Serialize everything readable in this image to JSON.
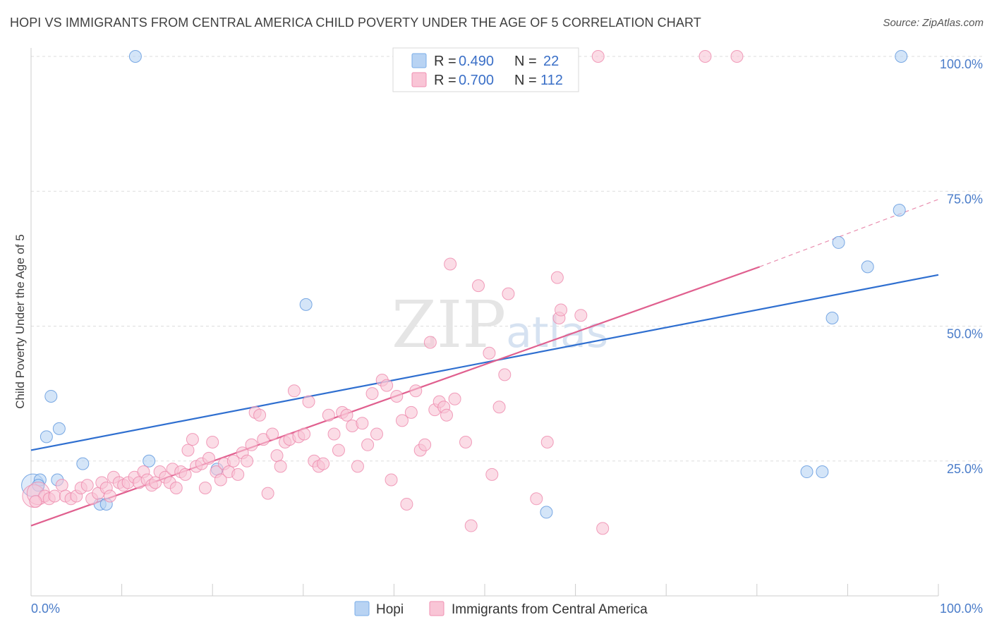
{
  "title": "HOPI VS IMMIGRANTS FROM CENTRAL AMERICA CHILD POVERTY UNDER THE AGE OF 5 CORRELATION CHART",
  "source": "Source: ZipAtlas.com",
  "watermark": "ZIPatlas",
  "legend": {
    "r_label": "R =",
    "n_label": "N =",
    "items": [
      {
        "name": "Hopi",
        "r": "0.490",
        "n": "22",
        "color": "#7aaee8",
        "fill": "#b8d3f3"
      },
      {
        "name": "Immigrants from Central America",
        "r": "0.700",
        "n": "112",
        "color": "#f08fb1",
        "fill": "#f9c5d6"
      }
    ]
  },
  "chart_data": {
    "type": "scatter",
    "title": "HOPI VS IMMIGRANTS FROM CENTRAL AMERICA CHILD POVERTY UNDER THE AGE OF 5 CORRELATION CHART",
    "xlabel": "",
    "ylabel": "Child Poverty Under the Age of 5",
    "xlim": [
      0,
      100
    ],
    "ylim": [
      0,
      100
    ],
    "x_tick_labels": [
      "0.0%",
      "100.0%"
    ],
    "y_ticks": [
      {
        "value": 25,
        "label": "25.0%"
      },
      {
        "value": 50,
        "label": "50.0%"
      },
      {
        "value": 75,
        "label": "75.0%"
      },
      {
        "value": 100,
        "label": "100.0%"
      }
    ],
    "series": [
      {
        "name": "Hopi",
        "color": "#5b95dd",
        "fill": "#b8d3f3",
        "trend": {
          "x0": 0,
          "y0": 27.0,
          "x1": 100,
          "y1": 59.5,
          "color": "#2f6fd0"
        },
        "points": [
          {
            "x": 0.2,
            "y": 20.5,
            "big": true
          },
          {
            "x": 1.0,
            "y": 21.5
          },
          {
            "x": 0.8,
            "y": 20.5
          },
          {
            "x": 2.2,
            "y": 37.0
          },
          {
            "x": 1.7,
            "y": 29.5
          },
          {
            "x": 3.1,
            "y": 31.0
          },
          {
            "x": 2.9,
            "y": 21.5
          },
          {
            "x": 5.7,
            "y": 24.5
          },
          {
            "x": 7.6,
            "y": 17.0
          },
          {
            "x": 8.3,
            "y": 17.0
          },
          {
            "x": 11.5,
            "y": 100
          },
          {
            "x": 13.0,
            "y": 25.0
          },
          {
            "x": 20.5,
            "y": 23.5
          },
          {
            "x": 30.3,
            "y": 54.0
          },
          {
            "x": 56.8,
            "y": 15.5
          },
          {
            "x": 85.5,
            "y": 23.0
          },
          {
            "x": 87.2,
            "y": 23.0
          },
          {
            "x": 88.3,
            "y": 51.5
          },
          {
            "x": 89.0,
            "y": 65.5
          },
          {
            "x": 92.2,
            "y": 61.0
          },
          {
            "x": 95.7,
            "y": 71.5
          },
          {
            "x": 95.9,
            "y": 100
          }
        ]
      },
      {
        "name": "Immigrants from Central America",
        "color": "#ee87ab",
        "fill": "#f9c5d6",
        "trend": {
          "x0": 0,
          "y0": 13.0,
          "x1": 80.3,
          "y1": 61.0,
          "dash_x1": 100,
          "dash_y1": 73.5,
          "color": "#e0608f"
        },
        "points": [
          {
            "x": 0.3,
            "y": 18.5,
            "big": true
          },
          {
            "x": 0.8,
            "y": 19.0,
            "big": true
          },
          {
            "x": 1.5,
            "y": 18.5
          },
          {
            "x": 2.0,
            "y": 18.0
          },
          {
            "x": 2.6,
            "y": 18.5
          },
          {
            "x": 3.4,
            "y": 20.5
          },
          {
            "x": 3.8,
            "y": 18.5
          },
          {
            "x": 4.4,
            "y": 18.0
          },
          {
            "x": 5.0,
            "y": 18.5
          },
          {
            "x": 5.5,
            "y": 20.0
          },
          {
            "x": 6.2,
            "y": 20.5
          },
          {
            "x": 6.7,
            "y": 18.0
          },
          {
            "x": 7.4,
            "y": 19.0
          },
          {
            "x": 7.8,
            "y": 21.0
          },
          {
            "x": 8.3,
            "y": 20.0
          },
          {
            "x": 8.7,
            "y": 18.5
          },
          {
            "x": 9.1,
            "y": 22.0
          },
          {
            "x": 9.7,
            "y": 21.0
          },
          {
            "x": 10.2,
            "y": 20.5
          },
          {
            "x": 10.7,
            "y": 21.0
          },
          {
            "x": 11.4,
            "y": 22.0
          },
          {
            "x": 11.9,
            "y": 21.0
          },
          {
            "x": 12.4,
            "y": 23.0
          },
          {
            "x": 12.8,
            "y": 21.5
          },
          {
            "x": 13.3,
            "y": 20.5
          },
          {
            "x": 13.7,
            "y": 21.0
          },
          {
            "x": 14.2,
            "y": 23.0
          },
          {
            "x": 14.8,
            "y": 22.0
          },
          {
            "x": 15.3,
            "y": 21.0
          },
          {
            "x": 15.6,
            "y": 23.5
          },
          {
            "x": 16.0,
            "y": 20.0
          },
          {
            "x": 16.5,
            "y": 23.0
          },
          {
            "x": 17.0,
            "y": 22.5
          },
          {
            "x": 17.3,
            "y": 27.0
          },
          {
            "x": 17.8,
            "y": 29.0
          },
          {
            "x": 18.2,
            "y": 24.0
          },
          {
            "x": 18.8,
            "y": 24.5
          },
          {
            "x": 19.2,
            "y": 20.0
          },
          {
            "x": 19.6,
            "y": 25.5
          },
          {
            "x": 20.0,
            "y": 28.5
          },
          {
            "x": 20.4,
            "y": 23.0
          },
          {
            "x": 20.9,
            "y": 21.5
          },
          {
            "x": 21.3,
            "y": 24.5
          },
          {
            "x": 21.8,
            "y": 23.0
          },
          {
            "x": 22.3,
            "y": 25.0
          },
          {
            "x": 22.8,
            "y": 22.5
          },
          {
            "x": 23.3,
            "y": 26.5
          },
          {
            "x": 23.8,
            "y": 25.0
          },
          {
            "x": 24.3,
            "y": 28.0
          },
          {
            "x": 24.7,
            "y": 34.0
          },
          {
            "x": 25.2,
            "y": 33.5
          },
          {
            "x": 25.6,
            "y": 29.0
          },
          {
            "x": 26.1,
            "y": 19.0
          },
          {
            "x": 26.6,
            "y": 30.0
          },
          {
            "x": 27.1,
            "y": 26.0
          },
          {
            "x": 27.5,
            "y": 24.0
          },
          {
            "x": 28.0,
            "y": 28.5
          },
          {
            "x": 28.5,
            "y": 29.0
          },
          {
            "x": 29.0,
            "y": 38.0
          },
          {
            "x": 29.5,
            "y": 29.5
          },
          {
            "x": 30.1,
            "y": 30.0
          },
          {
            "x": 30.6,
            "y": 36.0
          },
          {
            "x": 31.2,
            "y": 25.0
          },
          {
            "x": 31.7,
            "y": 24.0
          },
          {
            "x": 32.2,
            "y": 24.5
          },
          {
            "x": 32.8,
            "y": 33.5
          },
          {
            "x": 33.4,
            "y": 30.0
          },
          {
            "x": 33.9,
            "y": 27.0
          },
          {
            "x": 34.3,
            "y": 34.0
          },
          {
            "x": 34.8,
            "y": 33.5
          },
          {
            "x": 35.4,
            "y": 31.5
          },
          {
            "x": 36.0,
            "y": 24.0
          },
          {
            "x": 36.5,
            "y": 32.0
          },
          {
            "x": 37.1,
            "y": 28.0
          },
          {
            "x": 37.6,
            "y": 37.5
          },
          {
            "x": 38.1,
            "y": 30.0
          },
          {
            "x": 38.7,
            "y": 40.0
          },
          {
            "x": 39.2,
            "y": 39.0
          },
          {
            "x": 39.7,
            "y": 21.5
          },
          {
            "x": 40.3,
            "y": 37.0
          },
          {
            "x": 40.9,
            "y": 32.5
          },
          {
            "x": 41.4,
            "y": 17.0
          },
          {
            "x": 41.9,
            "y": 34.0
          },
          {
            "x": 42.4,
            "y": 38.0
          },
          {
            "x": 42.9,
            "y": 27.0
          },
          {
            "x": 43.4,
            "y": 28.0
          },
          {
            "x": 44.0,
            "y": 47.0
          },
          {
            "x": 44.5,
            "y": 34.5
          },
          {
            "x": 45.0,
            "y": 36.0
          },
          {
            "x": 45.5,
            "y": 35.0
          },
          {
            "x": 45.8,
            "y": 33.5
          },
          {
            "x": 46.2,
            "y": 61.5
          },
          {
            "x": 46.7,
            "y": 36.5
          },
          {
            "x": 47.9,
            "y": 28.5
          },
          {
            "x": 48.5,
            "y": 13.0
          },
          {
            "x": 49.3,
            "y": 57.5
          },
          {
            "x": 50.5,
            "y": 45.0
          },
          {
            "x": 50.8,
            "y": 22.5
          },
          {
            "x": 51.6,
            "y": 35.0
          },
          {
            "x": 52.2,
            "y": 41.0
          },
          {
            "x": 52.6,
            "y": 56.0
          },
          {
            "x": 55.7,
            "y": 18.0
          },
          {
            "x": 56.9,
            "y": 28.5
          },
          {
            "x": 58.0,
            "y": 59.0
          },
          {
            "x": 58.2,
            "y": 51.5
          },
          {
            "x": 58.4,
            "y": 53.0
          },
          {
            "x": 60.6,
            "y": 52.0
          },
          {
            "x": 62.5,
            "y": 100
          },
          {
            "x": 63.0,
            "y": 12.5
          },
          {
            "x": 74.3,
            "y": 100
          },
          {
            "x": 77.8,
            "y": 100
          },
          {
            "x": 0.5,
            "y": 17.5
          }
        ]
      }
    ]
  }
}
